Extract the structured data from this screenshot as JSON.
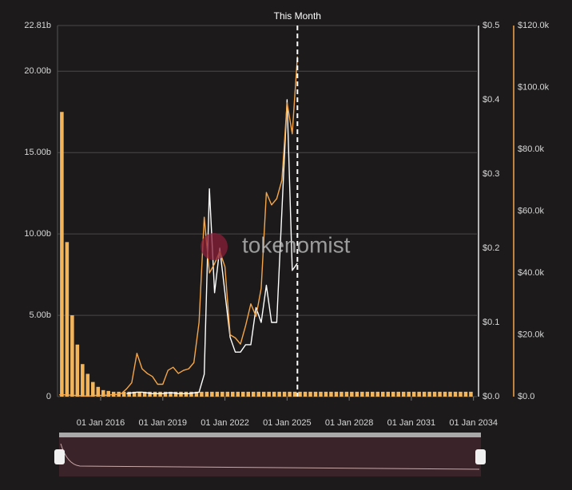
{
  "chart_data": {
    "type": "combo",
    "watermark": "tokenomist",
    "annotation": {
      "x": "2025-07-01",
      "label": "This Month"
    },
    "xlim": [
      "2013-12-01",
      "2034-03-01"
    ],
    "xticks": [
      {
        "value": "2016-01-01",
        "label": "01 Jan 2016"
      },
      {
        "value": "2019-01-01",
        "label": "01 Jan 2019"
      },
      {
        "value": "2022-01-01",
        "label": "01 Jan 2022"
      },
      {
        "value": "2025-01-01",
        "label": "01 Jan 2025"
      },
      {
        "value": "2028-01-01",
        "label": "01 Jan 2028"
      },
      {
        "value": "2031-01-01",
        "label": "01 Jan 2031"
      },
      {
        "value": "2034-01-01",
        "label": "01 Jan 2034"
      }
    ],
    "ylim": [
      0,
      22.81
    ],
    "yticks": [
      0,
      {
        "value": 5,
        "label": "5.00b"
      },
      {
        "value": 10,
        "label": "10.00b"
      },
      {
        "value": 15,
        "label": "15.00b"
      },
      {
        "value": 20,
        "label": "20.00b"
      },
      {
        "value": 22.81,
        "label": "22.81b"
      }
    ],
    "y2lim": [
      0,
      0.5
    ],
    "y2ticks": [
      {
        "value": 0,
        "label": "$0.0"
      },
      {
        "value": 0.1,
        "label": "$0.1"
      },
      {
        "value": 0.2,
        "label": "$0.2"
      },
      {
        "value": 0.3,
        "label": "$0.3"
      },
      {
        "value": 0.4,
        "label": "$0.4"
      },
      {
        "value": 0.5,
        "label": "$0.5"
      }
    ],
    "y3lim": [
      0,
      120
    ],
    "y3ticks": [
      {
        "value": 0,
        "label": "$0.0"
      },
      {
        "value": 20,
        "label": "$20.0k"
      },
      {
        "value": 40,
        "label": "$40.0k"
      },
      {
        "value": 60,
        "label": "$60.0k"
      },
      {
        "value": 80,
        "label": "$80.0k"
      },
      {
        "value": 100,
        "label": "$100.0k"
      },
      {
        "value": 120,
        "label": "$120.0k"
      }
    ],
    "grid": true,
    "x": [
      "2014-01-01",
      "2014-04-01",
      "2014-07-01",
      "2014-10-01",
      "2015-01-01",
      "2015-04-01",
      "2015-07-01",
      "2015-10-01",
      "2016-01-01",
      "2016-04-01",
      "2016-07-01",
      "2016-10-01",
      "2017-01-01",
      "2017-04-01",
      "2017-07-01",
      "2017-10-01",
      "2018-01-01",
      "2018-04-01",
      "2018-07-01",
      "2018-10-01",
      "2019-01-01",
      "2019-04-01",
      "2019-07-01",
      "2019-10-01",
      "2020-01-01",
      "2020-04-01",
      "2020-07-01",
      "2020-10-01",
      "2021-01-01",
      "2021-04-01",
      "2021-07-01",
      "2021-10-01",
      "2022-01-01",
      "2022-04-01",
      "2022-07-01",
      "2022-10-01",
      "2023-01-01",
      "2023-04-01",
      "2023-07-01",
      "2023-10-01",
      "2024-01-01",
      "2024-04-01",
      "2024-07-01",
      "2024-10-01",
      "2025-01-01",
      "2025-04-01",
      "2025-07-01",
      "2025-10-01",
      "2026-01-01",
      "2026-04-01",
      "2026-07-01",
      "2026-10-01",
      "2027-01-01",
      "2027-04-01",
      "2027-07-01",
      "2027-10-01",
      "2028-01-01",
      "2028-04-01",
      "2028-07-01",
      "2028-10-01",
      "2029-01-01",
      "2029-04-01",
      "2029-07-01",
      "2029-10-01",
      "2030-01-01",
      "2030-04-01",
      "2030-07-01",
      "2030-10-01",
      "2031-01-01",
      "2031-04-01",
      "2031-07-01",
      "2031-10-01",
      "2032-01-01",
      "2032-04-01",
      "2032-07-01",
      "2032-10-01",
      "2033-01-01",
      "2033-04-01",
      "2033-07-01",
      "2033-10-01"
    ],
    "series": [
      {
        "type": "bar",
        "axis": "y",
        "color": "#f3b55c",
        "values": [
          17.5,
          9.5,
          5.0,
          3.2,
          2.0,
          1.4,
          0.9,
          0.6,
          0.4,
          0.35,
          0.3,
          0.3,
          0.3,
          0.3,
          0.3,
          0.3,
          0.3,
          0.3,
          0.3,
          0.3,
          0.3,
          0.3,
          0.3,
          0.3,
          0.3,
          0.3,
          0.3,
          0.3,
          0.3,
          0.3,
          0.3,
          0.3,
          0.3,
          0.3,
          0.3,
          0.3,
          0.3,
          0.3,
          0.3,
          0.3,
          0.3,
          0.3,
          0.3,
          0.3,
          0.3,
          0.3,
          0.3,
          0.3,
          0.3,
          0.3,
          0.3,
          0.3,
          0.3,
          0.3,
          0.3,
          0.3,
          0.3,
          0.3,
          0.3,
          0.3,
          0.3,
          0.3,
          0.3,
          0.3,
          0.3,
          0.3,
          0.3,
          0.3,
          0.3,
          0.3,
          0.3,
          0.3,
          0.3,
          0.3,
          0.3,
          0.3,
          0.3,
          0.3,
          0.3,
          0.3
        ]
      },
      {
        "type": "line",
        "axis": "y2",
        "color": "#ffffff",
        "values": [
          null,
          null,
          null,
          null,
          null,
          null,
          null,
          null,
          null,
          null,
          null,
          null,
          null,
          0.004,
          0.005,
          0.006,
          0.006,
          0.005,
          0.004,
          0.004,
          0.004,
          0.005,
          0.005,
          0.004,
          0.004,
          0.004,
          0.005,
          0.006,
          0.03,
          0.28,
          0.14,
          0.2,
          0.14,
          0.08,
          0.06,
          0.06,
          0.07,
          0.07,
          0.12,
          0.1,
          0.15,
          0.1,
          0.1,
          0.25,
          0.4,
          0.17,
          0.18,
          null,
          null,
          null,
          null,
          null,
          null,
          null,
          null,
          null,
          null,
          null,
          null,
          null,
          null,
          null,
          null,
          null,
          null,
          null,
          null,
          null,
          null,
          null,
          null,
          null,
          null,
          null,
          null,
          null,
          null,
          null,
          null,
          null
        ]
      },
      {
        "type": "line",
        "axis": "y3",
        "color": "#f5a64a",
        "values": [
          0.6,
          0.6,
          0.5,
          0.4,
          0.3,
          0.2,
          0.25,
          0.4,
          0.4,
          0.45,
          0.6,
          0.7,
          1.0,
          2.5,
          4.5,
          14.0,
          9,
          7.5,
          6.5,
          4,
          4,
          8.5,
          9.5,
          7.5,
          8.5,
          9,
          11,
          24,
          58,
          40,
          43,
          47,
          42,
          20,
          19,
          17,
          23,
          30,
          26,
          35,
          66,
          62,
          64,
          70,
          95,
          85,
          110,
          null,
          null,
          null,
          null,
          null,
          null,
          null,
          null,
          null,
          null,
          null,
          null,
          null,
          null,
          null,
          null,
          null,
          null,
          null,
          null,
          null,
          null,
          null,
          null,
          null,
          null,
          null,
          null,
          null,
          null,
          null,
          null,
          null
        ]
      }
    ]
  }
}
